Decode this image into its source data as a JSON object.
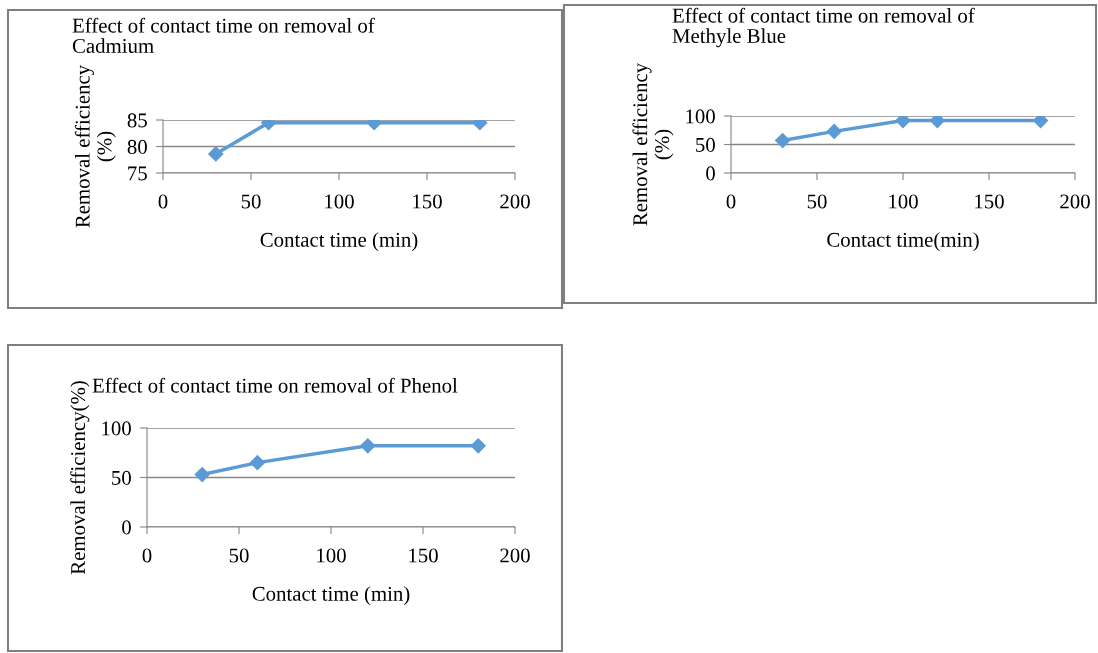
{
  "chart_data": [
    {
      "type": "line",
      "title": "Effect of contact time on removal of\nCadmium",
      "xlabel": "Contact time (min)",
      "ylabel": "Removal efficiency\n(%)",
      "x": [
        30,
        60,
        120,
        180
      ],
      "series": [
        {
          "color": "#5b9bd5",
          "values": [
            78.6,
            84.5,
            84.5,
            84.5
          ]
        }
      ],
      "xlim": [
        0,
        200
      ],
      "xticks": [
        0,
        50,
        100,
        150,
        200
      ],
      "ylim": [
        75,
        85
      ],
      "yticks": [
        75,
        80,
        85
      ],
      "grid": "y",
      "marker": "diamond",
      "legend": false
    },
    {
      "type": "line",
      "title": "Effect of contact time on removal of\nMethyle Blue",
      "xlabel": "Contact time(min)",
      "ylabel": "Removal efficiency\n(%)",
      "x": [
        30,
        60,
        100,
        120,
        180
      ],
      "series": [
        {
          "color": "#5b9bd5",
          "values": [
            57,
            73,
            92,
            92,
            92
          ]
        }
      ],
      "xlim": [
        0,
        200
      ],
      "xticks": [
        0,
        50,
        100,
        150,
        200
      ],
      "ylim": [
        0,
        100
      ],
      "yticks": [
        0,
        50,
        100
      ],
      "grid": "y",
      "marker": "diamond",
      "legend": false
    },
    {
      "type": "line",
      "title": "Effect of contact time on removal of Phenol",
      "xlabel": "Contact time (min)",
      "ylabel": "Removal efficiency(%)",
      "x": [
        30,
        60,
        120,
        180
      ],
      "series": [
        {
          "color": "#5b9bd5",
          "values": [
            53,
            65,
            82,
            82
          ]
        }
      ],
      "xlim": [
        0,
        200
      ],
      "xticks": [
        0,
        50,
        100,
        150,
        200
      ],
      "ylim": [
        0,
        100
      ],
      "yticks": [
        0,
        50,
        100
      ],
      "grid": "y",
      "marker": "diamond",
      "legend": false
    }
  ]
}
